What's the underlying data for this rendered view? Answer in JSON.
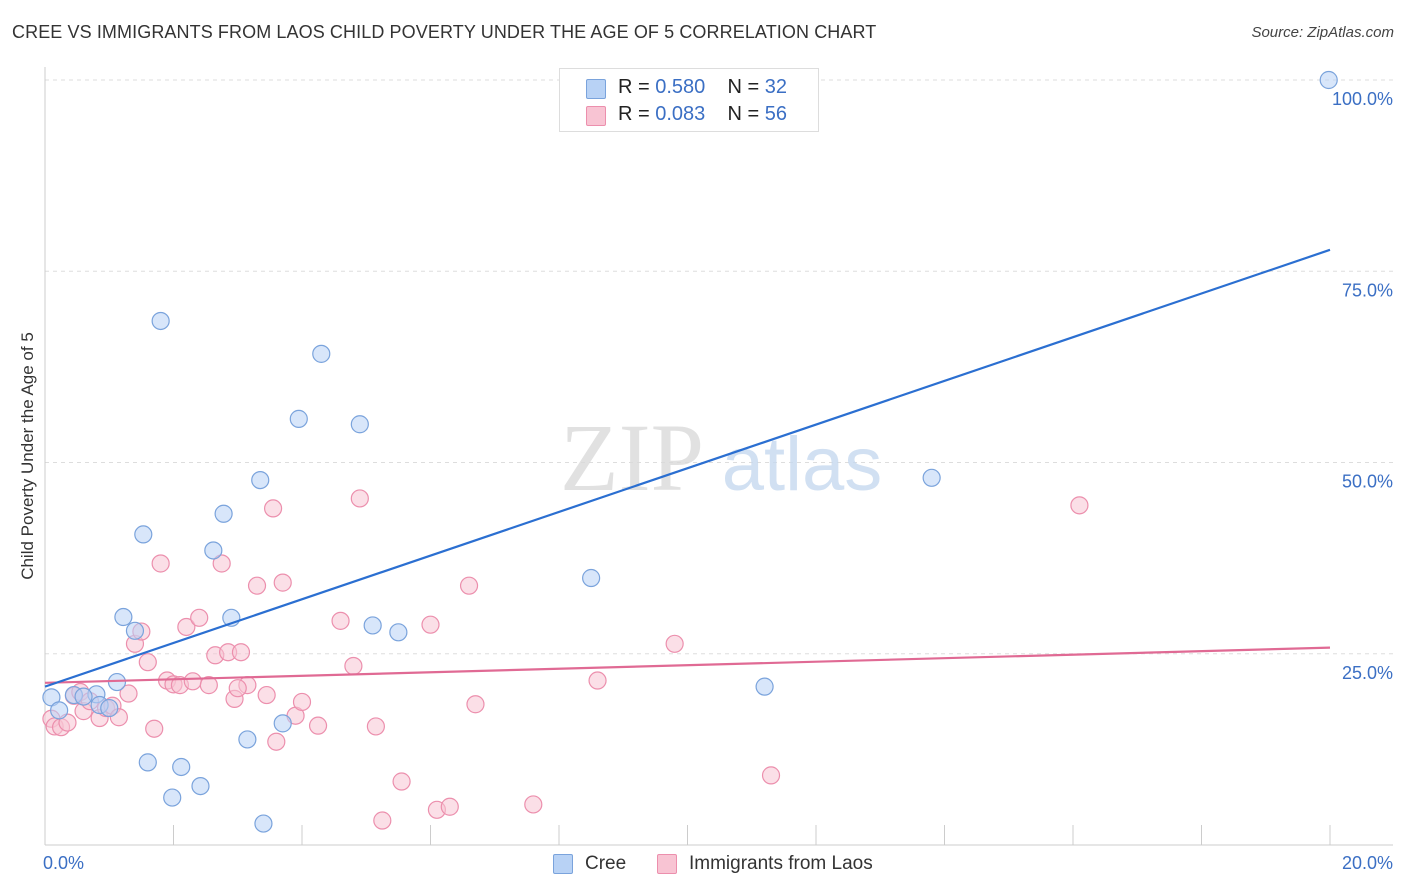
{
  "title": "CREE VS IMMIGRANTS FROM LAOS CHILD POVERTY UNDER THE AGE OF 5 CORRELATION CHART",
  "source": "Source: ZipAtlas.com",
  "watermark": {
    "zip": "ZIP",
    "atlas": "atlas"
  },
  "colors": {
    "cree_fill": "#b8d2f5",
    "cree_stroke": "#7aa3dc",
    "cree_line": "#2b6fd1",
    "laos_fill": "#f8c4d3",
    "laos_stroke": "#ec8fad",
    "laos_line": "#e06a94",
    "axis_label": "#3b6fc4",
    "grid": "#dddddd"
  },
  "stats": [
    {
      "r_label": "R =",
      "r_value": "0.580",
      "n_label": "N =",
      "n_value": "32"
    },
    {
      "r_label": "R =",
      "r_value": "0.083",
      "n_label": "N =",
      "n_value": "56"
    }
  ],
  "legend": [
    {
      "label": "Cree"
    },
    {
      "label": "Immigrants from Laos"
    }
  ],
  "chart_data": {
    "type": "scatter",
    "title": "CREE VS IMMIGRANTS FROM LAOS CHILD POVERTY UNDER THE AGE OF 5 CORRELATION CHART",
    "xlabel": "",
    "ylabel": "Child Poverty Under the Age of 5",
    "xlim": [
      0,
      20
    ],
    "ylim": [
      0,
      100
    ],
    "x_tick_labels": [
      {
        "value": 0,
        "label": "0.0%"
      },
      {
        "value": 20,
        "label": "20.0%"
      }
    ],
    "y_tick_labels": [
      {
        "value": 25,
        "label": "25.0%"
      },
      {
        "value": 50,
        "label": "50.0%"
      },
      {
        "value": 75,
        "label": "75.0%"
      },
      {
        "value": 100,
        "label": "100.0%"
      }
    ],
    "grid": true,
    "legend_position": "bottom-center",
    "series": [
      {
        "name": "Cree",
        "r": 0.58,
        "n": 32,
        "trend": {
          "x": [
            0,
            20
          ],
          "y": [
            20.7,
            77.8
          ]
        },
        "points": [
          [
            0.1,
            19.3
          ],
          [
            0.22,
            17.6
          ],
          [
            0.45,
            19.6
          ],
          [
            0.8,
            19.7
          ],
          [
            0.85,
            18.3
          ],
          [
            1.12,
            21.3
          ],
          [
            1.22,
            29.8
          ],
          [
            1.4,
            28.0
          ],
          [
            1.53,
            40.6
          ],
          [
            1.6,
            10.8
          ],
          [
            1.8,
            68.5
          ],
          [
            1.98,
            6.2
          ],
          [
            2.12,
            10.2
          ],
          [
            2.42,
            7.7
          ],
          [
            2.62,
            38.5
          ],
          [
            2.78,
            43.3
          ],
          [
            2.9,
            29.7
          ],
          [
            3.15,
            13.8
          ],
          [
            3.35,
            47.7
          ],
          [
            3.4,
            2.8
          ],
          [
            3.7,
            15.9
          ],
          [
            3.95,
            55.7
          ],
          [
            4.3,
            64.2
          ],
          [
            4.9,
            55.0
          ],
          [
            5.1,
            28.7
          ],
          [
            5.5,
            27.8
          ],
          [
            8.5,
            34.9
          ],
          [
            11.2,
            20.7
          ],
          [
            13.8,
            48.0
          ],
          [
            19.98,
            100.0
          ],
          [
            0.6,
            19.4
          ],
          [
            1.0,
            17.9
          ]
        ]
      },
      {
        "name": "Immigrants from Laos",
        "r": 0.083,
        "n": 56,
        "trend": {
          "x": [
            0,
            20
          ],
          "y": [
            21.2,
            25.8
          ]
        },
        "points": [
          [
            0.1,
            16.5
          ],
          [
            0.15,
            15.5
          ],
          [
            0.25,
            15.4
          ],
          [
            0.35,
            16.0
          ],
          [
            0.45,
            19.5
          ],
          [
            0.55,
            20.0
          ],
          [
            0.6,
            17.5
          ],
          [
            0.7,
            18.8
          ],
          [
            0.85,
            16.6
          ],
          [
            0.95,
            17.9
          ],
          [
            1.05,
            18.2
          ],
          [
            1.15,
            16.7
          ],
          [
            1.3,
            19.8
          ],
          [
            1.4,
            26.3
          ],
          [
            1.5,
            27.9
          ],
          [
            1.6,
            23.9
          ],
          [
            1.7,
            15.2
          ],
          [
            1.8,
            36.8
          ],
          [
            1.9,
            21.5
          ],
          [
            2.0,
            21.0
          ],
          [
            2.1,
            20.9
          ],
          [
            2.2,
            28.5
          ],
          [
            2.3,
            21.4
          ],
          [
            2.4,
            29.7
          ],
          [
            2.55,
            20.9
          ],
          [
            2.65,
            24.8
          ],
          [
            2.75,
            36.8
          ],
          [
            2.85,
            25.2
          ],
          [
            2.95,
            19.1
          ],
          [
            3.05,
            25.2
          ],
          [
            3.15,
            20.9
          ],
          [
            3.3,
            33.9
          ],
          [
            3.45,
            19.6
          ],
          [
            3.55,
            44.0
          ],
          [
            3.6,
            13.5
          ],
          [
            3.7,
            34.3
          ],
          [
            3.9,
            16.9
          ],
          [
            4.0,
            18.7
          ],
          [
            4.25,
            15.6
          ],
          [
            4.6,
            29.3
          ],
          [
            4.8,
            23.4
          ],
          [
            4.9,
            45.3
          ],
          [
            5.15,
            15.5
          ],
          [
            5.25,
            3.2
          ],
          [
            5.55,
            8.3
          ],
          [
            6.0,
            28.8
          ],
          [
            6.1,
            4.6
          ],
          [
            6.3,
            5.0
          ],
          [
            6.6,
            33.9
          ],
          [
            6.7,
            18.4
          ],
          [
            7.6,
            5.3
          ],
          [
            8.6,
            21.5
          ],
          [
            9.8,
            26.3
          ],
          [
            11.3,
            9.1
          ],
          [
            16.1,
            44.4
          ],
          [
            3.0,
            20.5
          ]
        ]
      }
    ]
  }
}
